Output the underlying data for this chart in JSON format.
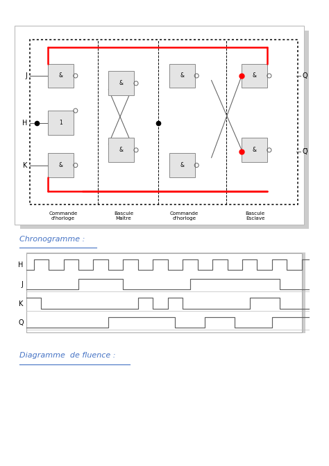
{
  "bg_color": "#f0f0f0",
  "page_bg": "#ffffff",
  "chronogramme_label": "Chronogramme :",
  "diagramme_label": "Diagramme  de fluence :",
  "label_color": "#4472c4",
  "signal_color": "#606060",
  "H_signal": [
    0,
    1,
    1,
    0,
    0,
    1,
    1,
    0,
    0,
    1,
    1,
    0,
    0,
    1,
    1,
    0,
    0,
    1,
    1,
    0,
    0,
    1,
    1,
    0,
    0,
    1,
    1,
    0,
    0,
    1,
    1,
    0,
    0,
    1,
    1,
    0,
    0,
    1
  ],
  "J_signal": [
    0,
    0,
    0,
    0,
    0,
    0,
    0,
    1,
    1,
    1,
    1,
    1,
    1,
    0,
    0,
    0,
    0,
    0,
    0,
    0,
    0,
    0,
    1,
    1,
    1,
    1,
    1,
    1,
    1,
    1,
    1,
    1,
    1,
    1,
    0,
    0,
    0,
    0
  ],
  "K_signal": [
    1,
    1,
    0,
    0,
    0,
    0,
    0,
    0,
    0,
    0,
    0,
    0,
    0,
    0,
    0,
    1,
    1,
    0,
    0,
    1,
    1,
    0,
    0,
    0,
    0,
    0,
    0,
    0,
    0,
    0,
    1,
    1,
    1,
    1,
    0,
    0,
    0,
    0
  ],
  "Q_signal": [
    0,
    0,
    0,
    0,
    0,
    0,
    0,
    0,
    0,
    0,
    0,
    1,
    1,
    1,
    1,
    1,
    1,
    1,
    1,
    1,
    0,
    0,
    0,
    0,
    1,
    1,
    1,
    1,
    0,
    0,
    0,
    0,
    0,
    1,
    1,
    1,
    1,
    1
  ],
  "circuit_labels": [
    "Commande\nd'horloge",
    "Bascule\nMaître",
    "Commande\nd'horloge",
    "Bascule\nEsclave"
  ],
  "output_labels": [
    "Q",
    "Q̅"
  ],
  "input_labels": [
    "J",
    "H",
    "K"
  ]
}
